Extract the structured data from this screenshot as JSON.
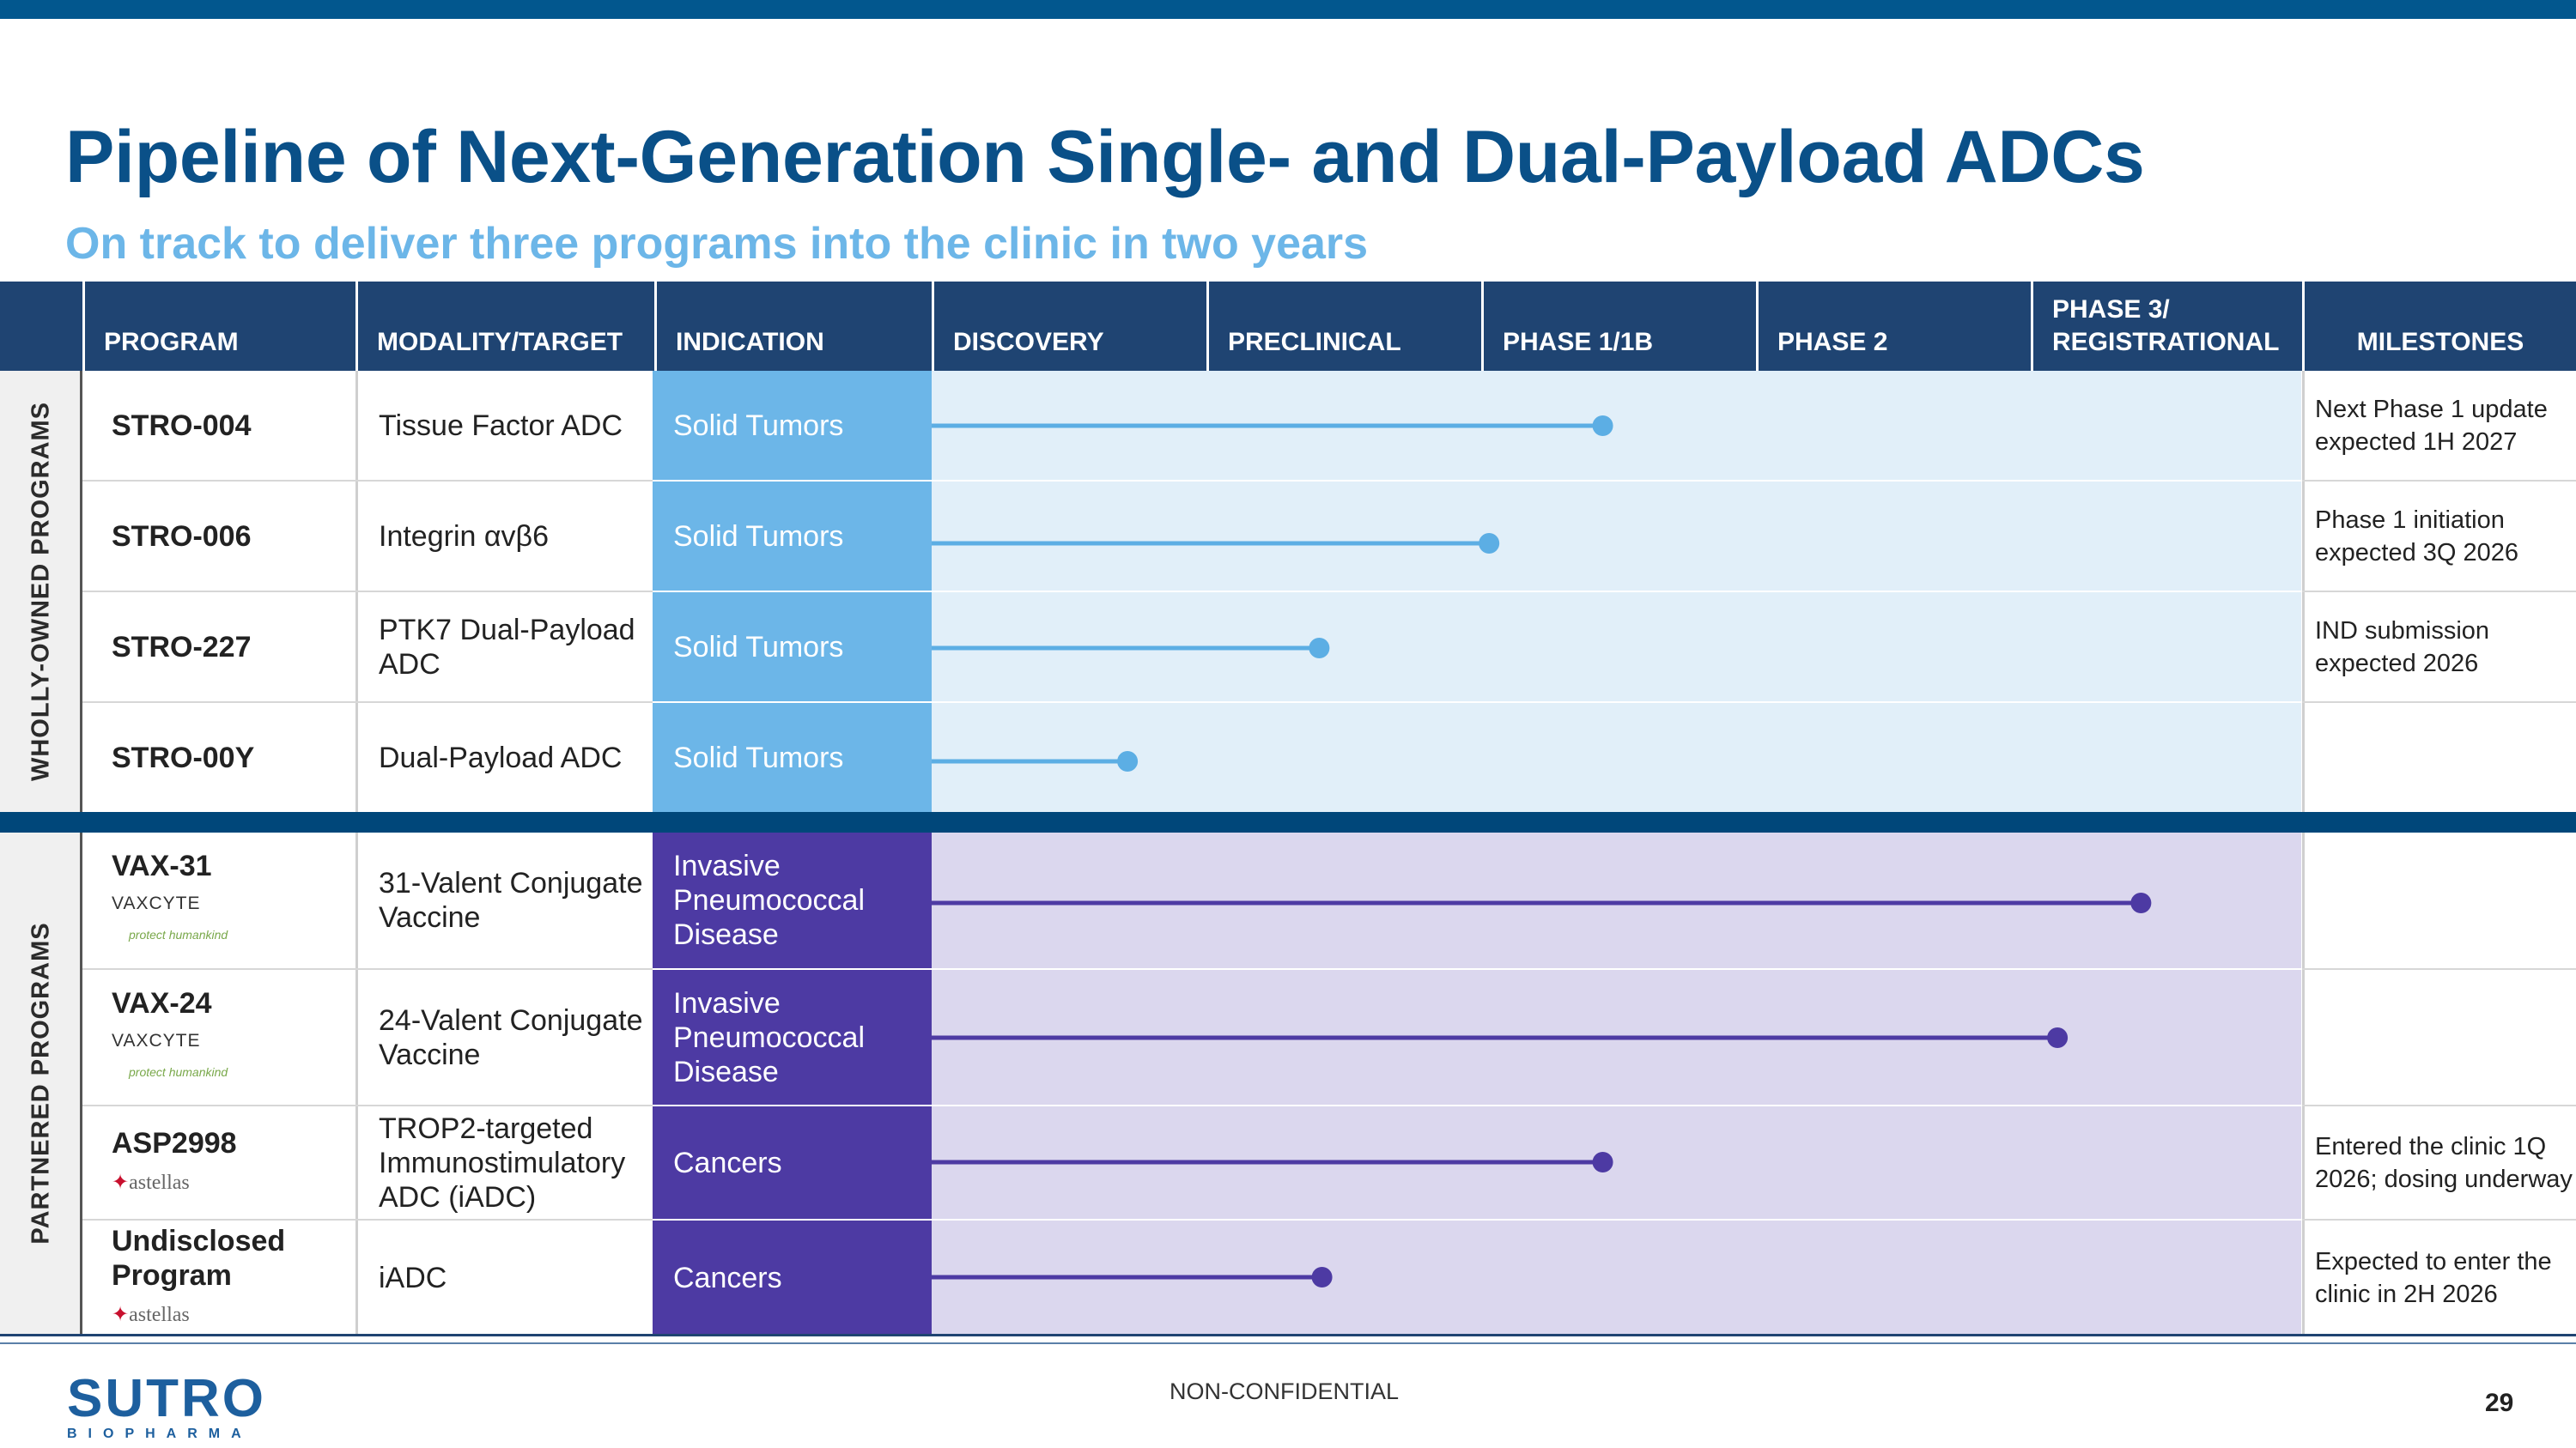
{
  "title": "Pipeline of Next-Generation Single- and Dual-Payload ADCs",
  "subtitle": "On track to deliver three programs into the clinic in two years",
  "header": {
    "program": "PROGRAM",
    "modality": "MODALITY/TARGET",
    "indication": "INDICATION",
    "discovery": "DISCOVERY",
    "preclinical": "PRECLINICAL",
    "phase1": "PHASE 1/1B",
    "phase2": "PHASE 2",
    "phase3_line1": "PHASE 3/",
    "phase3_line2": "REGISTRATIONAL",
    "milestones": "MILESTONES"
  },
  "groups": {
    "wholly_owned": "WHOLLY-OWNED PROGRAMS",
    "partnered": "PARTNERED PROGRAMS"
  },
  "colors": {
    "wholly_owned_indication": "#6cb6e8",
    "wholly_owned_band": "#e1eff9",
    "wholly_owned_bar": "#5caee4",
    "partnered_indication": "#4d3aa3",
    "partnered_band": "#dbd7ee",
    "partnered_bar": "#4d3aa3"
  },
  "programs": [
    {
      "program": "STRO-004",
      "modality": "Tissue Factor ADC",
      "indication": "Solid Tumors",
      "milestone": "Next Phase 1 update expected 1H 2027",
      "progress": 0.49
    },
    {
      "program": "STRO-006",
      "modality": "Integrin αvβ6",
      "indication": "Solid Tumors",
      "milestone": "Phase 1 initiation expected 3Q 2026",
      "progress": 0.407
    },
    {
      "program": "STRO-227",
      "modality": "PTK7 Dual-Payload ADC",
      "indication": "Solid Tumors",
      "milestone": "IND submission expected 2026",
      "progress": 0.283
    },
    {
      "program": "STRO-00Y",
      "modality": "Dual-Payload ADC",
      "indication": "Solid Tumors",
      "milestone": "",
      "progress": 0.143
    },
    {
      "program": "VAX-31",
      "partner": "VAXCYTE",
      "partner_tag": "protect humankind",
      "modality": "31-Valent Conjugate Vaccine",
      "indication": "Invasive Pneumococcal Disease",
      "milestone": "",
      "progress": 0.883
    },
    {
      "program": "VAX-24",
      "partner": "VAXCYTE",
      "partner_tag": "protect humankind",
      "modality": "24-Valent Conjugate Vaccine",
      "indication": "Invasive Pneumococcal Disease",
      "milestone": "",
      "progress": 0.822
    },
    {
      "program": "ASP2998",
      "partner": "astellas",
      "modality": "TROP2-targeted Immunostimulatory ADC (iADC)",
      "indication": "Cancers",
      "milestone": "Entered the clinic 1Q 2026; dosing underway",
      "progress": 0.49
    },
    {
      "program": "Undisclosed Program",
      "partner": "astellas",
      "modality": "iADC",
      "indication": "Cancers",
      "milestone": "Expected to enter the clinic in 2H 2026",
      "progress": 0.285
    }
  ],
  "footer": {
    "brand_name": "SUTRO",
    "brand_sub": "BIOPHARMA",
    "label": "NON-CONFIDENTIAL",
    "page": "29"
  }
}
